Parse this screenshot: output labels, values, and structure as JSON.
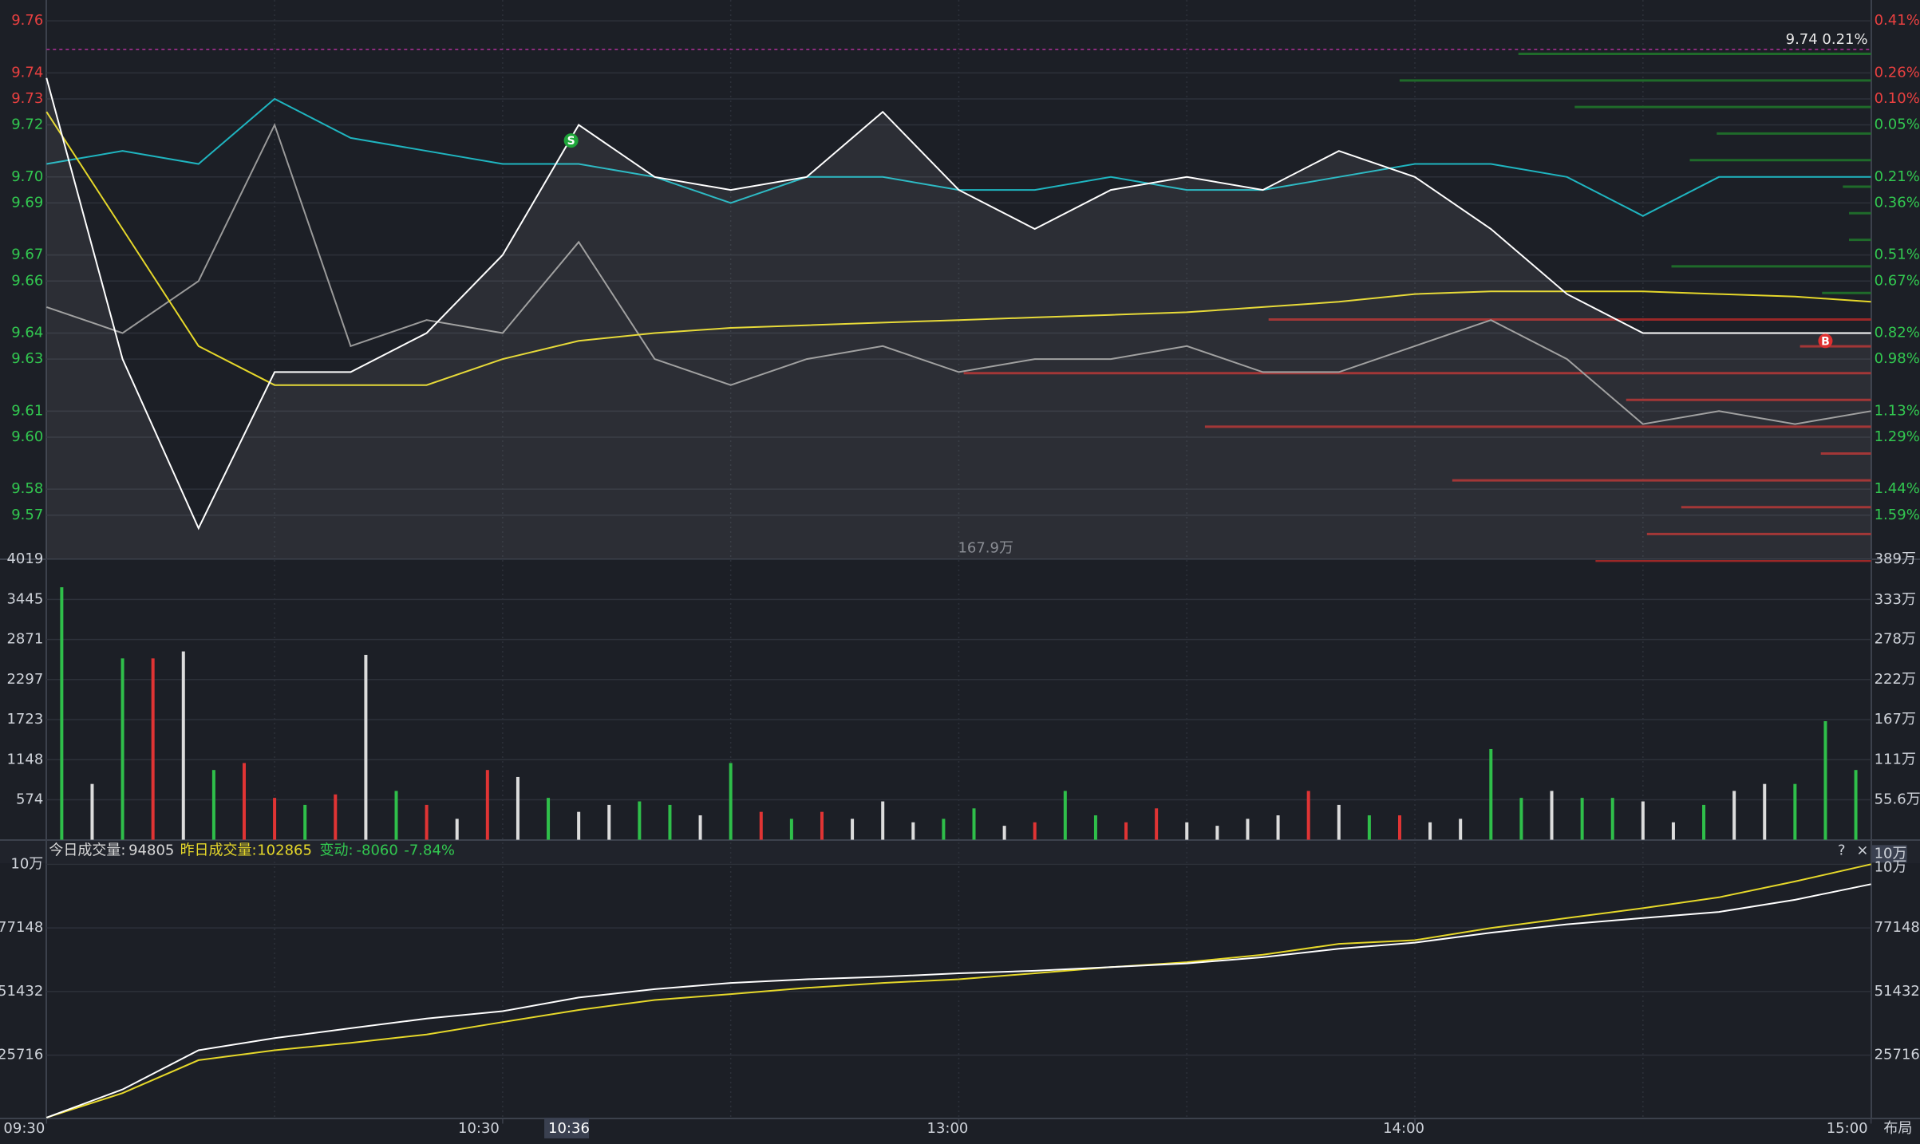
{
  "chart_data": [
    {
      "type": "line",
      "x": [
        0,
        10,
        20,
        30,
        40,
        50,
        60,
        70,
        80,
        90,
        100,
        110,
        120,
        130,
        140,
        150,
        160,
        170,
        180,
        190,
        200,
        210,
        220,
        230,
        240
      ],
      "xlim": [
        0,
        240
      ],
      "xgrid": [
        30,
        60,
        90,
        120,
        150,
        180,
        210
      ],
      "ylim": [
        9.553,
        9.768
      ],
      "yticks": [
        9.76,
        9.74,
        9.73,
        9.72,
        {
          "value": 9.7,
          "label": "9.70"
        },
        9.69,
        9.67,
        9.66,
        9.64,
        9.63,
        9.61,
        {
          "value": 9.6,
          "label": "9.60"
        },
        9.58,
        9.57
      ],
      "ytick_colors": [
        "#e84040",
        "#e84040",
        "#e84040",
        "#32c850",
        "#32c850",
        "#32c850",
        "#32c850",
        "#32c850",
        "#32c850",
        "#32c850",
        "#32c850",
        "#32c850",
        "#32c850",
        "#32c850"
      ],
      "right_labels": [
        "0.41%",
        "0.26%",
        "0.10%",
        "0.05%",
        "0.21%",
        "0.36%",
        "0.51%",
        "0.67%",
        "0.82%",
        "0.98%",
        "1.13%",
        "1.29%",
        "1.44%",
        "1.59%"
      ],
      "right_label_colors": [
        "#e84040",
        "#e84040",
        "#e84040",
        "#32c850",
        "#32c850",
        "#32c850",
        "#32c850",
        "#32c850",
        "#32c850",
        "#32c850",
        "#32c850",
        "#32c850",
        "#32c850",
        "#32c850"
      ],
      "series": [
        {
          "color": "#9a9a9a",
          "values": [
            9.65,
            9.64,
            9.66,
            9.72,
            9.635,
            9.645,
            9.64,
            9.675,
            9.63,
            9.62,
            9.63,
            9.635,
            9.625,
            9.63,
            9.63,
            9.635,
            9.625,
            9.625,
            9.635,
            9.645,
            9.63,
            9.605,
            9.61,
            9.605,
            9.61
          ]
        },
        {
          "color": "#1fb5c0",
          "values": [
            9.705,
            9.71,
            9.705,
            9.73,
            9.715,
            9.71,
            9.705,
            9.705,
            9.7,
            9.69,
            9.7,
            9.7,
            9.695,
            9.695,
            9.7,
            9.695,
            9.695,
            9.7,
            9.705,
            9.705,
            9.7,
            9.685,
            9.7,
            9.7,
            9.7
          ]
        },
        {
          "color": "#e6d82a",
          "values": [
            9.725,
            9.68,
            9.635,
            9.62,
            9.62,
            9.62,
            9.63,
            9.637,
            9.64,
            9.642,
            9.643,
            9.644,
            9.645,
            9.646,
            9.647,
            9.648,
            9.65,
            9.652,
            9.655,
            9.656,
            9.656,
            9.656,
            9.655,
            9.654,
            9.652
          ]
        },
        {
          "color": "#ffffff",
          "area": true,
          "values": [
            9.738,
            9.63,
            9.565,
            9.625,
            9.625,
            9.64,
            9.67,
            9.72,
            9.7,
            9.695,
            9.7,
            9.725,
            9.695,
            9.68,
            9.695,
            9.7,
            9.695,
            9.71,
            9.7,
            9.68,
            9.655,
            9.64,
            9.64,
            9.64,
            9.64
          ]
        }
      ],
      "reference_line": {
        "value": 9.749,
        "label": "9.74 0.21%",
        "color": "#b0309a"
      },
      "markers": [
        {
          "label": "S",
          "x": 69,
          "value": 9.714,
          "color": "#1fa53a"
        },
        {
          "label": "B",
          "x": 234,
          "value": 9.637,
          "color": "#e03030"
        }
      ],
      "depth": {
        "xlim": [
          0,
          1490
        ],
        "asks": {
          "color": "#1f6b2a",
          "values": [
            288,
            385,
            242,
            126,
            148,
            23,
            18,
            18,
            163,
            40
          ]
        },
        "bids": {
          "color": "#9c2828",
          "values": [
            492,
            58,
            741,
            200,
            544,
            41,
            342,
            155,
            183,
            225
          ]
        }
      }
    },
    {
      "type": "bar",
      "x": [
        2,
        6,
        10,
        14,
        18,
        22,
        26,
        30,
        34,
        38,
        42,
        46,
        50,
        54,
        58,
        62,
        66,
        70,
        74,
        78,
        82,
        86,
        90,
        94,
        98,
        102,
        106,
        110,
        114,
        118,
        122,
        126,
        130,
        134,
        138,
        142,
        146,
        150,
        154,
        158,
        162,
        166,
        170,
        174,
        178,
        182,
        186,
        190,
        194,
        198,
        202,
        206,
        210,
        214,
        218,
        222,
        226,
        230,
        234,
        238
      ],
      "xlim": [
        0,
        240
      ],
      "values": [
        3620,
        800,
        2600,
        2600,
        2700,
        1000,
        1100,
        600,
        500,
        650,
        2650,
        700,
        500,
        300,
        1000,
        900,
        600,
        400,
        500,
        550,
        500,
        350,
        1100,
        400,
        300,
        400,
        300,
        550,
        250,
        300,
        450,
        200,
        250,
        700,
        350,
        250,
        450,
        250,
        200,
        300,
        350,
        700,
        500,
        350,
        350,
        250,
        300,
        1300,
        600,
        700,
        600,
        600,
        550,
        250,
        500,
        700,
        800,
        800,
        1700,
        1000
      ],
      "colors": [
        "#2fbf4a",
        "#dcdcdc",
        "#2fbf4a",
        "#e03434",
        "#dcdcdc",
        "#2fbf4a",
        "#e03434",
        "#e03434",
        "#2fbf4a",
        "#e03434",
        "#dcdcdc",
        "#2fbf4a",
        "#e03434",
        "#dcdcdc",
        "#e03434",
        "#dcdcdc",
        "#2fbf4a",
        "#dcdcdc",
        "#dcdcdc",
        "#2fbf4a",
        "#2fbf4a",
        "#dcdcdc",
        "#2fbf4a",
        "#e03434",
        "#2fbf4a",
        "#e03434",
        "#dcdcdc",
        "#dcdcdc",
        "#dcdcdc",
        "#2fbf4a",
        "#2fbf4a",
        "#dcdcdc",
        "#e03434",
        "#2fbf4a",
        "#2fbf4a",
        "#e03434",
        "#e03434",
        "#dcdcdc",
        "#dcdcdc",
        "#dcdcdc",
        "#dcdcdc",
        "#e03434",
        "#dcdcdc",
        "#2fbf4a",
        "#e03434",
        "#dcdcdc",
        "#dcdcdc",
        "#2fbf4a",
        "#2fbf4a",
        "#dcdcdc",
        "#2fbf4a",
        "#2fbf4a",
        "#dcdcdc",
        "#dcdcdc",
        "#2fbf4a",
        "#dcdcdc",
        "#dcdcdc",
        "#2fbf4a",
        "#2fbf4a",
        "#2fbf4a"
      ],
      "ylim": [
        0,
        4019
      ],
      "yticks": [
        4019,
        3445,
        2871,
        2297,
        1723,
        1148,
        574
      ],
      "y2lim": [
        0,
        3890000
      ],
      "y2ticks": [
        {
          "value": 3890000,
          "label": "389万"
        },
        {
          "value": 3330000,
          "label": "333万"
        },
        {
          "value": 2780000,
          "label": "278万"
        },
        {
          "value": 2220000,
          "label": "222万"
        },
        {
          "value": 1670000,
          "label": "167万"
        },
        {
          "value": 1110000,
          "label": "111万"
        },
        {
          "value": 556000,
          "label": "55.6万"
        }
      ],
      "annotation": "167.9万"
    },
    {
      "type": "line",
      "header": [
        {
          "label": "今日成交量:",
          "value": 94805,
          "label_color": "#d8d8d8",
          "value_color": "#d8d8d8"
        },
        {
          "label": "昨日成交量:",
          "value": 102865,
          "label_color": "#e6d82a",
          "value_color": "#e6d82a"
        },
        {
          "label": "变动:",
          "value": -8060,
          "extra": "-7.84%",
          "label_color": "#32c850",
          "value_color": "#32c850"
        }
      ],
      "controls": [
        "?",
        "×"
      ],
      "x": [
        0,
        10,
        20,
        30,
        40,
        50,
        60,
        70,
        80,
        90,
        100,
        110,
        120,
        130,
        140,
        150,
        160,
        170,
        180,
        190,
        200,
        210,
        220,
        230,
        240
      ],
      "xlim": [
        0,
        240
      ],
      "xticks": [
        {
          "value": 0,
          "label": "09:30"
        },
        {
          "value": 60,
          "label": "10:30"
        },
        {
          "value": 120,
          "label": "13:00"
        },
        {
          "value": 180,
          "label": "14:00"
        },
        {
          "value": 240,
          "label": "15:00"
        }
      ],
      "cursor": {
        "value": 66,
        "label": "10:36"
      },
      "layout_button": "布局",
      "ylim": [
        0,
        102864
      ],
      "yticks": [
        {
          "value": 102864,
          "label": "10万"
        },
        77148,
        51432,
        25716
      ],
      "series": [
        {
          "color": "#e6d82a",
          "values": [
            500,
            10400,
            23700,
            27700,
            30700,
            34100,
            39100,
            44000,
            48000,
            50400,
            52900,
            54900,
            56400,
            58800,
            61300,
            63300,
            66300,
            70700,
            72200,
            77100,
            81100,
            85100,
            89500,
            95900,
            102865
          ]
        },
        {
          "color": "#ffffff",
          "values": [
            500,
            11900,
            27700,
            32600,
            36600,
            40500,
            43500,
            49000,
            52400,
            54900,
            56400,
            57400,
            58800,
            59800,
            61300,
            62800,
            65300,
            68700,
            71200,
            75200,
            78600,
            81100,
            83600,
            88500,
            94805
          ]
        }
      ]
    }
  ]
}
